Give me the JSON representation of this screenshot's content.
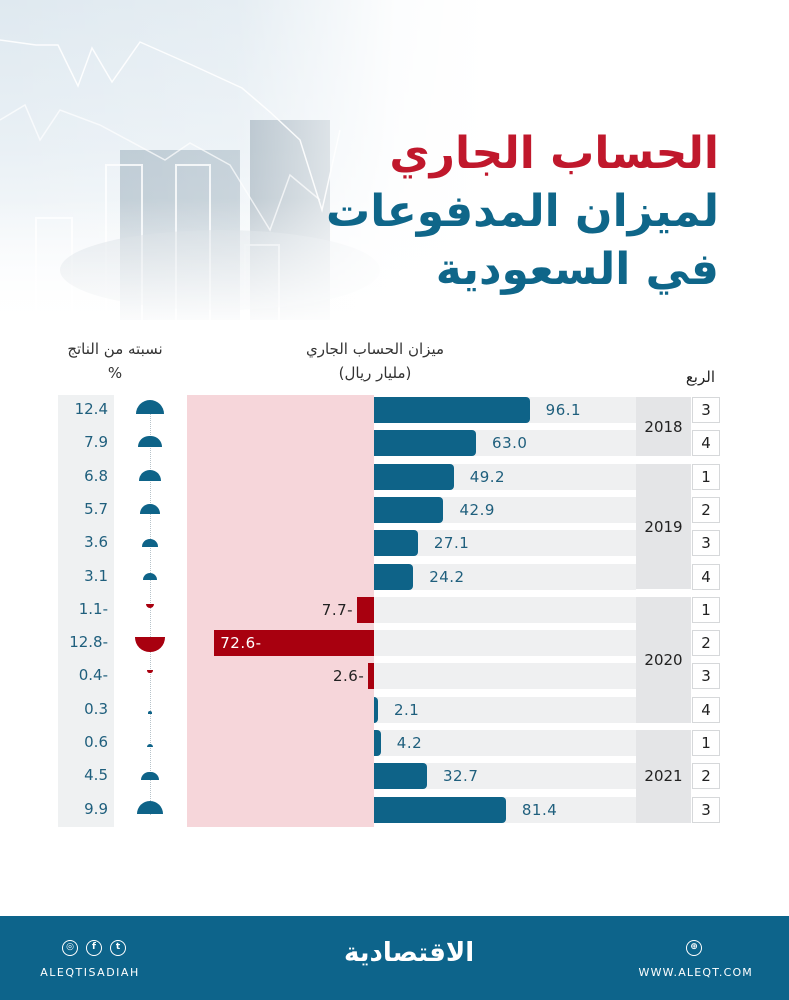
{
  "header": {
    "title_line1": "الحساب الجاري",
    "title_line2": "لميزان المدفوعات",
    "title_line3": "في السعودية"
  },
  "columns": {
    "pct_label": "نسبته من الناتج",
    "pct_unit": "%",
    "balance_label": "ميزان الحساب الجاري",
    "balance_unit": "(مليار ريال)",
    "quarter_label": "الربع"
  },
  "colors": {
    "positive": "#0e6388",
    "negative": "#a8000f",
    "negative_zone": "#f6d6da",
    "footer": "#0d648b",
    "title_red": "#c0182c",
    "title_blue": "#0f6689"
  },
  "years": [
    {
      "label": "2018",
      "rows": [
        0,
        1
      ]
    },
    {
      "label": "2019",
      "rows": [
        2,
        5
      ]
    },
    {
      "label": "2020",
      "rows": [
        6,
        9
      ]
    },
    {
      "label": "2021",
      "rows": [
        10,
        12
      ]
    }
  ],
  "chart_data": {
    "type": "bar",
    "orientation": "horizontal",
    "title": "الحساب الجاري لميزان المدفوعات في السعودية",
    "categories": [
      "2018 Q3",
      "2018 Q4",
      "2019 Q1",
      "2019 Q2",
      "2019 Q3",
      "2019 Q4",
      "2020 Q1",
      "2020 Q2",
      "2020 Q3",
      "2020 Q4",
      "2021 Q1",
      "2021 Q2",
      "2021 Q3"
    ],
    "series": [
      {
        "name": "ميزان الحساب الجاري (مليار ريال)",
        "values": [
          96.1,
          63.0,
          49.2,
          42.9,
          27.1,
          24.2,
          -7.7,
          -72.6,
          -2.6,
          2.1,
          4.2,
          32.7,
          81.4
        ]
      },
      {
        "name": "نسبته من الناتج %",
        "values": [
          12.4,
          7.9,
          6.8,
          5.7,
          3.6,
          3.1,
          -1.1,
          -12.8,
          -0.4,
          0.3,
          0.6,
          4.5,
          9.9
        ]
      }
    ],
    "rows": [
      {
        "year": "2018",
        "quarter": "3",
        "value": 96.1,
        "value_label": "96.1",
        "pct": 12.4,
        "pct_label": "12.4"
      },
      {
        "year": "2018",
        "quarter": "4",
        "value": 63.0,
        "value_label": "63.0",
        "pct": 7.9,
        "pct_label": "7.9"
      },
      {
        "year": "2019",
        "quarter": "1",
        "value": 49.2,
        "value_label": "49.2",
        "pct": 6.8,
        "pct_label": "6.8"
      },
      {
        "year": "2019",
        "quarter": "2",
        "value": 42.9,
        "value_label": "42.9",
        "pct": 5.7,
        "pct_label": "5.7"
      },
      {
        "year": "2019",
        "quarter": "3",
        "value": 27.1,
        "value_label": "27.1",
        "pct": 3.6,
        "pct_label": "3.6"
      },
      {
        "year": "2019",
        "quarter": "4",
        "value": 24.2,
        "value_label": "24.2",
        "pct": 3.1,
        "pct_label": "3.1"
      },
      {
        "year": "2020",
        "quarter": "1",
        "value": -7.7,
        "value_label": "7.7-",
        "pct": -1.1,
        "pct_label": "1.1-"
      },
      {
        "year": "2020",
        "quarter": "2",
        "value": -72.6,
        "value_label": "72.6-",
        "pct": -12.8,
        "pct_label": "12.8-"
      },
      {
        "year": "2020",
        "quarter": "3",
        "value": -2.6,
        "value_label": "2.6-",
        "pct": -0.4,
        "pct_label": "0.4-"
      },
      {
        "year": "2020",
        "quarter": "4",
        "value": 2.1,
        "value_label": "2.1",
        "pct": 0.3,
        "pct_label": "0.3"
      },
      {
        "year": "2021",
        "quarter": "1",
        "value": 4.2,
        "value_label": "4.2",
        "pct": 0.6,
        "pct_label": "0.6"
      },
      {
        "year": "2021",
        "quarter": "2",
        "value": 32.7,
        "value_label": "32.7",
        "pct": 4.5,
        "pct_label": "4.5"
      },
      {
        "year": "2021",
        "quarter": "3",
        "value": 81.4,
        "value_label": "81.4",
        "pct": 9.9,
        "pct_label": "9.9"
      }
    ],
    "xlabel": "ميزان الحساب الجاري (مليار ريال)",
    "ylabel": "الربع",
    "grid": false,
    "legend": "none"
  },
  "footer": {
    "handle": "ALEQTISADIAH",
    "logo": "الاقتصادية",
    "website": "WWW.ALEQT.COM",
    "social_icons": [
      "instagram-icon",
      "facebook-icon",
      "twitter-icon"
    ],
    "web_icon": "globe-icon"
  }
}
